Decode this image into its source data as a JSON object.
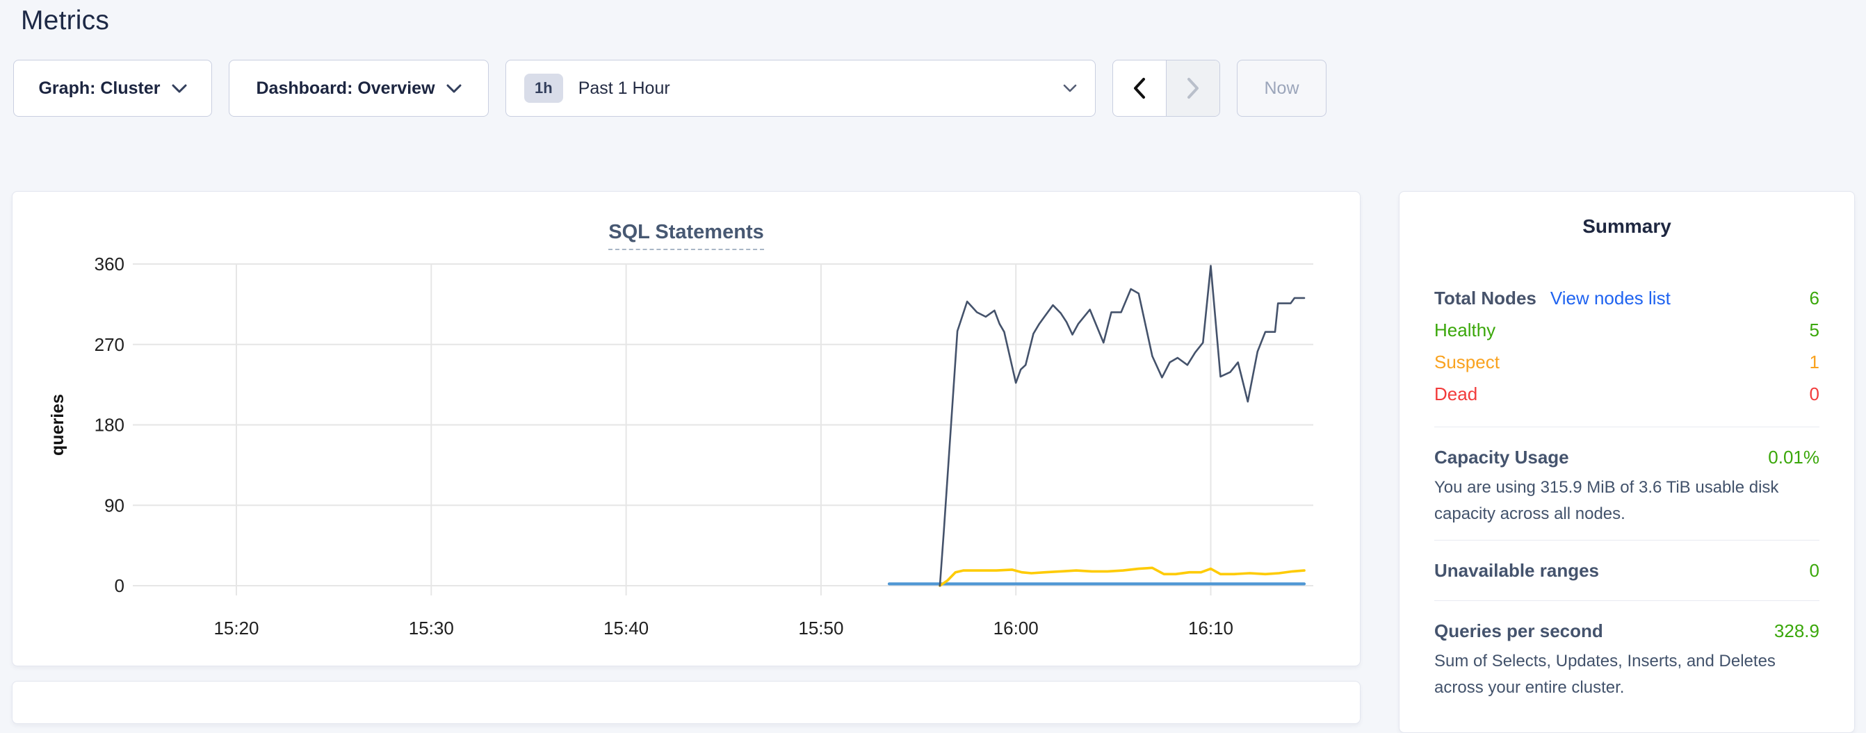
{
  "page": {
    "title": "Metrics"
  },
  "toolbar": {
    "graph_selector": "Graph: Cluster",
    "dashboard_selector": "Dashboard: Overview",
    "time_window_badge": "1h",
    "time_window_label": "Past 1 Hour",
    "now_button": "Now"
  },
  "chart_data": {
    "type": "line",
    "title": "SQL Statements",
    "ylabel": "queries",
    "ylim": [
      0,
      360
    ],
    "yticks": [
      0,
      90,
      180,
      270,
      360
    ],
    "xticks": [
      {
        "minute": 20,
        "label": "15:20"
      },
      {
        "minute": 30,
        "label": "15:30"
      },
      {
        "minute": 40,
        "label": "15:40"
      },
      {
        "minute": 50,
        "label": "15:50"
      },
      {
        "minute": 60,
        "label": "16:00"
      },
      {
        "minute": 70,
        "label": "16:10"
      }
    ],
    "x_domain_minutes_after_1500": [
      14.7,
      75.25
    ],
    "grid": true,
    "legend": "none",
    "colors": {
      "grid": "#e6e6e6",
      "tick_text": "#1f1f1f"
    },
    "series": [
      {
        "name": "light-blue-line",
        "color": "#4f97d4",
        "width": 4.2,
        "points": [
          [
            53.5,
            2
          ],
          [
            74.8,
            2
          ]
        ]
      },
      {
        "name": "yellow-line",
        "color": "#fecb05",
        "width": 3.6,
        "points": [
          [
            56.1,
            0
          ],
          [
            56.5,
            6
          ],
          [
            56.9,
            15
          ],
          [
            57.3,
            17
          ],
          [
            58.2,
            17
          ],
          [
            59.0,
            17
          ],
          [
            59.8,
            18
          ],
          [
            60.3,
            15
          ],
          [
            60.8,
            14
          ],
          [
            61.5,
            15
          ],
          [
            62.3,
            16
          ],
          [
            63.1,
            17
          ],
          [
            63.9,
            16
          ],
          [
            64.7,
            16
          ],
          [
            65.5,
            17
          ],
          [
            66.3,
            19
          ],
          [
            67.0,
            20
          ],
          [
            67.6,
            13
          ],
          [
            68.2,
            13
          ],
          [
            68.9,
            15
          ],
          [
            69.5,
            15
          ],
          [
            70.0,
            19
          ],
          [
            70.5,
            13
          ],
          [
            71.2,
            13
          ],
          [
            72.0,
            14
          ],
          [
            72.8,
            13
          ],
          [
            73.5,
            14
          ],
          [
            74.2,
            16
          ],
          [
            74.8,
            17
          ]
        ]
      },
      {
        "name": "dark-blue-line",
        "color": "#44526b",
        "width": 2.6,
        "points": [
          [
            56.1,
            0
          ],
          [
            56.3,
            60
          ],
          [
            57.0,
            285
          ],
          [
            57.5,
            318
          ],
          [
            58.0,
            306
          ],
          [
            58.45,
            301
          ],
          [
            58.9,
            308
          ],
          [
            59.16,
            293
          ],
          [
            59.4,
            284
          ],
          [
            60.0,
            227
          ],
          [
            60.25,
            242
          ],
          [
            60.5,
            247
          ],
          [
            60.9,
            282
          ],
          [
            61.2,
            293
          ],
          [
            61.5,
            302
          ],
          [
            61.9,
            314
          ],
          [
            62.3,
            305
          ],
          [
            62.6,
            295
          ],
          [
            62.9,
            281
          ],
          [
            63.2,
            293
          ],
          [
            63.8,
            309
          ],
          [
            64.5,
            272
          ],
          [
            64.9,
            306
          ],
          [
            65.4,
            306
          ],
          [
            65.9,
            332
          ],
          [
            66.3,
            327
          ],
          [
            67.0,
            257
          ],
          [
            67.5,
            233
          ],
          [
            67.9,
            250
          ],
          [
            68.3,
            255
          ],
          [
            68.8,
            247
          ],
          [
            69.2,
            261
          ],
          [
            69.6,
            272
          ],
          [
            70.0,
            358
          ],
          [
            70.5,
            234
          ],
          [
            71.0,
            239
          ],
          [
            71.4,
            250
          ],
          [
            71.9,
            206
          ],
          [
            72.4,
            262
          ],
          [
            72.8,
            284
          ],
          [
            73.3,
            284
          ],
          [
            73.45,
            316
          ],
          [
            74.1,
            316
          ],
          [
            74.3,
            322
          ],
          [
            74.8,
            322
          ]
        ]
      }
    ]
  },
  "summary": {
    "title": "Summary",
    "nodes": {
      "total_label": "Total Nodes",
      "link": "View nodes list",
      "total_value": "6",
      "total_color": "#3aa70a",
      "rows": [
        {
          "label": "Healthy",
          "value": "5",
          "color": "#3aa70a"
        },
        {
          "label": "Suspect",
          "value": "1",
          "color": "#f9a21f"
        },
        {
          "label": "Dead",
          "value": "0",
          "color": "#f23b3b"
        }
      ]
    },
    "capacity": {
      "label": "Capacity Usage",
      "value": "0.01%",
      "value_color": "#3aa70a",
      "description": "You are using 315.9 MiB of 3.6 TiB usable disk capacity across all nodes."
    },
    "unavailable": {
      "label": "Unavailable ranges",
      "value": "0",
      "value_color": "#3aa70a"
    },
    "qps": {
      "label": "Queries per second",
      "value": "328.9",
      "value_color": "#3aa70a",
      "description": "Sum of Selects, Updates, Inserts, and Deletes across your entire cluster."
    }
  }
}
